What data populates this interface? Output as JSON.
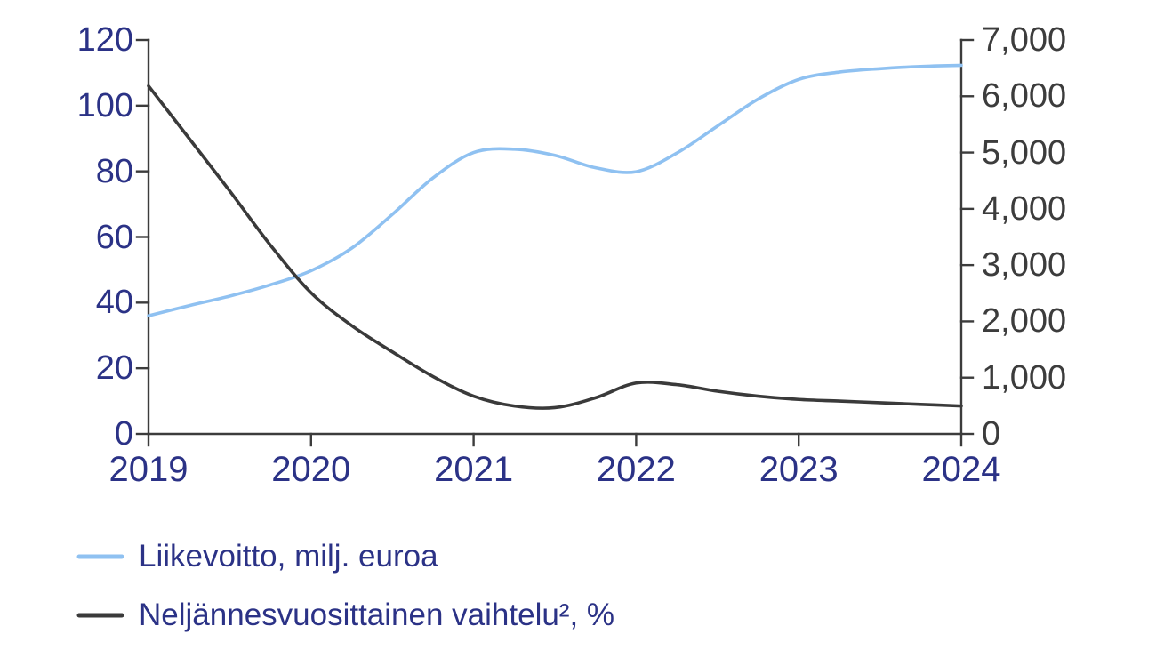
{
  "chart_data": {
    "type": "line",
    "title": "",
    "background": "#ffffff",
    "grid": false,
    "axis_line_color": "#3c3c3c",
    "x_axis": {
      "range": [
        2019,
        2024
      ],
      "ticks": [
        {
          "label": "2019",
          "value": 2019
        },
        {
          "label": "2020",
          "value": 2020
        },
        {
          "label": "2021",
          "value": 2021
        },
        {
          "label": "2022",
          "value": 2022
        },
        {
          "label": "2023",
          "value": 2023
        },
        {
          "label": "2024",
          "value": 2024
        }
      ],
      "text_color": "#2b3286"
    },
    "left_axis": {
      "range": [
        0,
        120
      ],
      "ticks": [
        {
          "label": "0",
          "value": 0
        },
        {
          "label": "20",
          "value": 20
        },
        {
          "label": "40",
          "value": 40
        },
        {
          "label": "60",
          "value": 60
        },
        {
          "label": "80",
          "value": 80
        },
        {
          "label": "100",
          "value": 100
        },
        {
          "label": "120",
          "value": 120
        }
      ],
      "text_color": "#2b3286"
    },
    "right_axis": {
      "range": [
        0,
        7000
      ],
      "ticks": [
        {
          "label": "0",
          "value": 0
        },
        {
          "label": "1,000",
          "value": 1000
        },
        {
          "label": "2,000",
          "value": 2000
        },
        {
          "label": "3,000",
          "value": 3000
        },
        {
          "label": "4,000",
          "value": 4000
        },
        {
          "label": "5,000",
          "value": 5000
        },
        {
          "label": "6,000",
          "value": 6000
        },
        {
          "label": "7,000",
          "value": 7000
        }
      ],
      "text_color": "#3c3c3c"
    },
    "legend_position": "bottom-left",
    "series": [
      {
        "name": "Liikevoitto, milj. euroa",
        "axis": "right",
        "color": "#8fc1f1",
        "x": [
          2019,
          2019.25,
          2019.5,
          2019.75,
          2020,
          2020.25,
          2020.5,
          2020.75,
          2021,
          2021.25,
          2021.5,
          2021.75,
          2022,
          2022.25,
          2022.5,
          2022.75,
          2023,
          2023.25,
          2023.5,
          2023.75,
          2024
        ],
        "values": [
          2100,
          2280,
          2450,
          2650,
          2900,
          3300,
          3900,
          4550,
          5000,
          5060,
          4950,
          4730,
          4660,
          4990,
          5470,
          5950,
          6300,
          6430,
          6490,
          6530,
          6550
        ]
      },
      {
        "name": "Neljännesvuosittainen vaihtelu², %",
        "axis": "left",
        "color": "#3a3a3a",
        "x": [
          2019,
          2019.25,
          2019.5,
          2019.75,
          2020,
          2020.25,
          2020.5,
          2020.75,
          2021,
          2021.25,
          2021.5,
          2021.75,
          2022,
          2022.25,
          2022.5,
          2022.75,
          2023,
          2023.25,
          2023.5,
          2023.75,
          2024
        ],
        "values": [
          106,
          90,
          74,
          57.5,
          43,
          33,
          25,
          17.5,
          11.5,
          8.5,
          8,
          11,
          15.5,
          15,
          13,
          11.5,
          10.5,
          10,
          9.5,
          9,
          8.5
        ]
      }
    ]
  }
}
